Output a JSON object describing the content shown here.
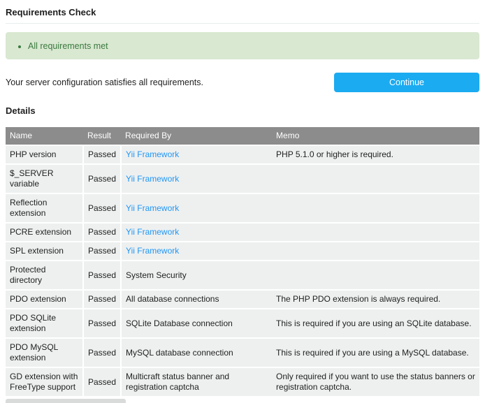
{
  "page": {
    "title": "Requirements Check",
    "alert_item": "All requirements met",
    "summary": "Your server configuration satisfies all requirements.",
    "continue_label": "Continue",
    "details_title": "Details"
  },
  "table": {
    "columns": [
      "Name",
      "Result",
      "Required By",
      "Memo"
    ],
    "rows": [
      {
        "name": "PHP version",
        "result": "Passed",
        "required_by": "Yii Framework",
        "required_by_is_link": true,
        "memo": "PHP 5.1.0 or higher is required."
      },
      {
        "name": "$_SERVER variable",
        "result": "Passed",
        "required_by": "Yii Framework",
        "required_by_is_link": true,
        "memo": ""
      },
      {
        "name": "Reflection extension",
        "result": "Passed",
        "required_by": "Yii Framework",
        "required_by_is_link": true,
        "memo": ""
      },
      {
        "name": "PCRE extension",
        "result": "Passed",
        "required_by": "Yii Framework",
        "required_by_is_link": true,
        "memo": ""
      },
      {
        "name": "SPL extension",
        "result": "Passed",
        "required_by": "Yii Framework",
        "required_by_is_link": true,
        "memo": ""
      },
      {
        "name": "Protected directory",
        "result": "Passed",
        "required_by": "System Security",
        "required_by_is_link": false,
        "memo": ""
      },
      {
        "name": "PDO extension",
        "result": "Passed",
        "required_by": "All database connections",
        "required_by_is_link": false,
        "memo": "The PHP PDO extension is always required."
      },
      {
        "name": "PDO SQLite extension",
        "result": "Passed",
        "required_by": "SQLite Database connection",
        "required_by_is_link": false,
        "memo": "This is required if you are using an SQLite database."
      },
      {
        "name": "PDO MySQL extension",
        "result": "Passed",
        "required_by": "MySQL database connection",
        "required_by_is_link": false,
        "memo": "This is required if you are using a MySQL database."
      },
      {
        "name": "GD extension with FreeType support",
        "result": "Passed",
        "required_by": "Multicraft status banner and registration captcha",
        "required_by_is_link": false,
        "memo": "Only required if you want to use the status banners or registration captcha."
      }
    ]
  },
  "colors": {
    "header-bg": "#8c8c8c",
    "row-bg": "#eef0f0",
    "passed-green": "#4caf50",
    "alert-bg": "#d9e8d1",
    "alert-text": "#3a7a3e",
    "link-blue": "#2196f3",
    "button-blue": "#1babf1",
    "text": "#212121"
  }
}
